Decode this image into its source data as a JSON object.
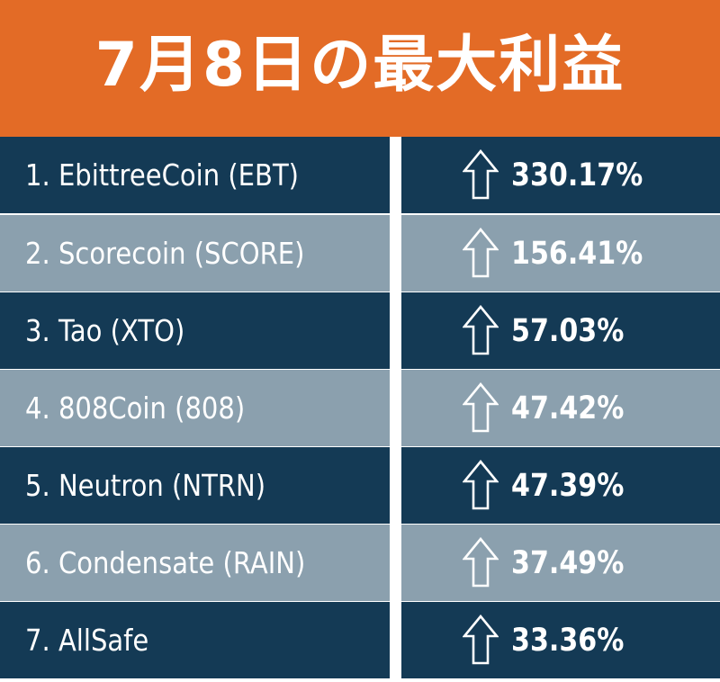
{
  "header": {
    "title": "7月8日の最大利益"
  },
  "colors": {
    "header_bg": "#e36b26",
    "row_dark": "#143a55",
    "row_light": "#8ba0ae",
    "text": "#ffffff"
  },
  "rows": [
    {
      "name": "1. EbittreeCoin (EBT)",
      "change": "330.17%",
      "icon": "arrow-up-icon"
    },
    {
      "name": "2. Scorecoin (SCORE)",
      "change": "156.41%",
      "icon": "arrow-up-icon"
    },
    {
      "name": "3. Tao (XTO)",
      "change": "57.03%",
      "icon": "arrow-up-icon"
    },
    {
      "name": "4. 808Coin (808)",
      "change": "47.42%",
      "icon": "arrow-up-icon"
    },
    {
      "name": "5. Neutron (NTRN)",
      "change": "47.39%",
      "icon": "arrow-up-icon"
    },
    {
      "name": "6. Condensate (RAIN)",
      "change": "37.49%",
      "icon": "arrow-up-icon"
    },
    {
      "name": "7. AllSafe",
      "change": "33.36%",
      "icon": "arrow-up-icon"
    }
  ]
}
